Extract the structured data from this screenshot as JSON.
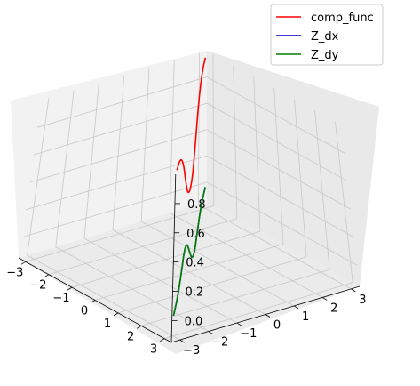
{
  "chart_data": {
    "type": "line",
    "projection": "3d",
    "title": "",
    "xlabel": "",
    "ylabel": "",
    "zlabel": "",
    "x_ticks": [
      "−3",
      "−2",
      "−1",
      "0",
      "1",
      "2",
      "3"
    ],
    "y_ticks": [
      "−3",
      "−2",
      "−1",
      "0",
      "1",
      "2",
      "3"
    ],
    "z_ticks": [
      "0.0",
      "0.2",
      "0.4",
      "0.6",
      "0.8"
    ],
    "xlim": [
      -3.3,
      3.3
    ],
    "ylim": [
      -3.3,
      3.3
    ],
    "zlim": [
      -0.15,
      1.0
    ],
    "grid": true,
    "legend_position": "top-right",
    "series": [
      {
        "name": "comp_func",
        "color": "#ff0000",
        "path": "t from -3 to 3, x = t, y = -t",
        "x": [
          -3,
          -2.5,
          -2,
          -1.5,
          -1,
          -0.5,
          0,
          0.5,
          1,
          1.5,
          2,
          2.5,
          3
        ],
        "y": [
          3,
          2.5,
          2,
          1.5,
          1,
          0.5,
          0,
          -0.5,
          -1,
          -1.5,
          -2,
          -2.5,
          -3
        ],
        "z": [
          0.99,
          0.98,
          0.93,
          0.82,
          0.65,
          0.5,
          0.45,
          0.5,
          0.65,
          0.82,
          0.93,
          0.98,
          0.99
        ]
      },
      {
        "name": "Z_dx",
        "color": "#0000cc",
        "path": "t from -3 to 3, x = t, y = -t",
        "x": [
          -3,
          -2.5,
          -2,
          -1.5,
          -1,
          -0.5,
          0,
          0.5,
          1,
          1.5,
          2,
          2.5,
          3
        ],
        "y": [
          3,
          2.5,
          2,
          1.5,
          1,
          0.5,
          0,
          -0.5,
          -1,
          -1.5,
          -2,
          -2.5,
          -3
        ],
        "z": [
          0.01,
          0.0,
          -0.03,
          -0.09,
          -0.15,
          -0.12,
          0.0,
          0.12,
          0.15,
          0.09,
          0.03,
          0.0,
          -0.01
        ]
      },
      {
        "name": "Z_dy",
        "color": "#008000",
        "path": "t from -3 to 3, x = t, y = -t",
        "x": [
          -3,
          -2.5,
          -2,
          -1.5,
          -1,
          -0.5,
          0,
          0.5,
          1,
          1.5,
          2,
          2.5,
          3
        ],
        "y": [
          3,
          2.5,
          2,
          1.5,
          1,
          0.5,
          0,
          -0.5,
          -1,
          -1.5,
          -2,
          -2.5,
          -3
        ],
        "z": [
          0.01,
          0.0,
          -0.03,
          -0.09,
          -0.15,
          -0.12,
          0.0,
          0.12,
          0.15,
          0.09,
          0.03,
          0.0,
          -0.01
        ]
      }
    ]
  }
}
